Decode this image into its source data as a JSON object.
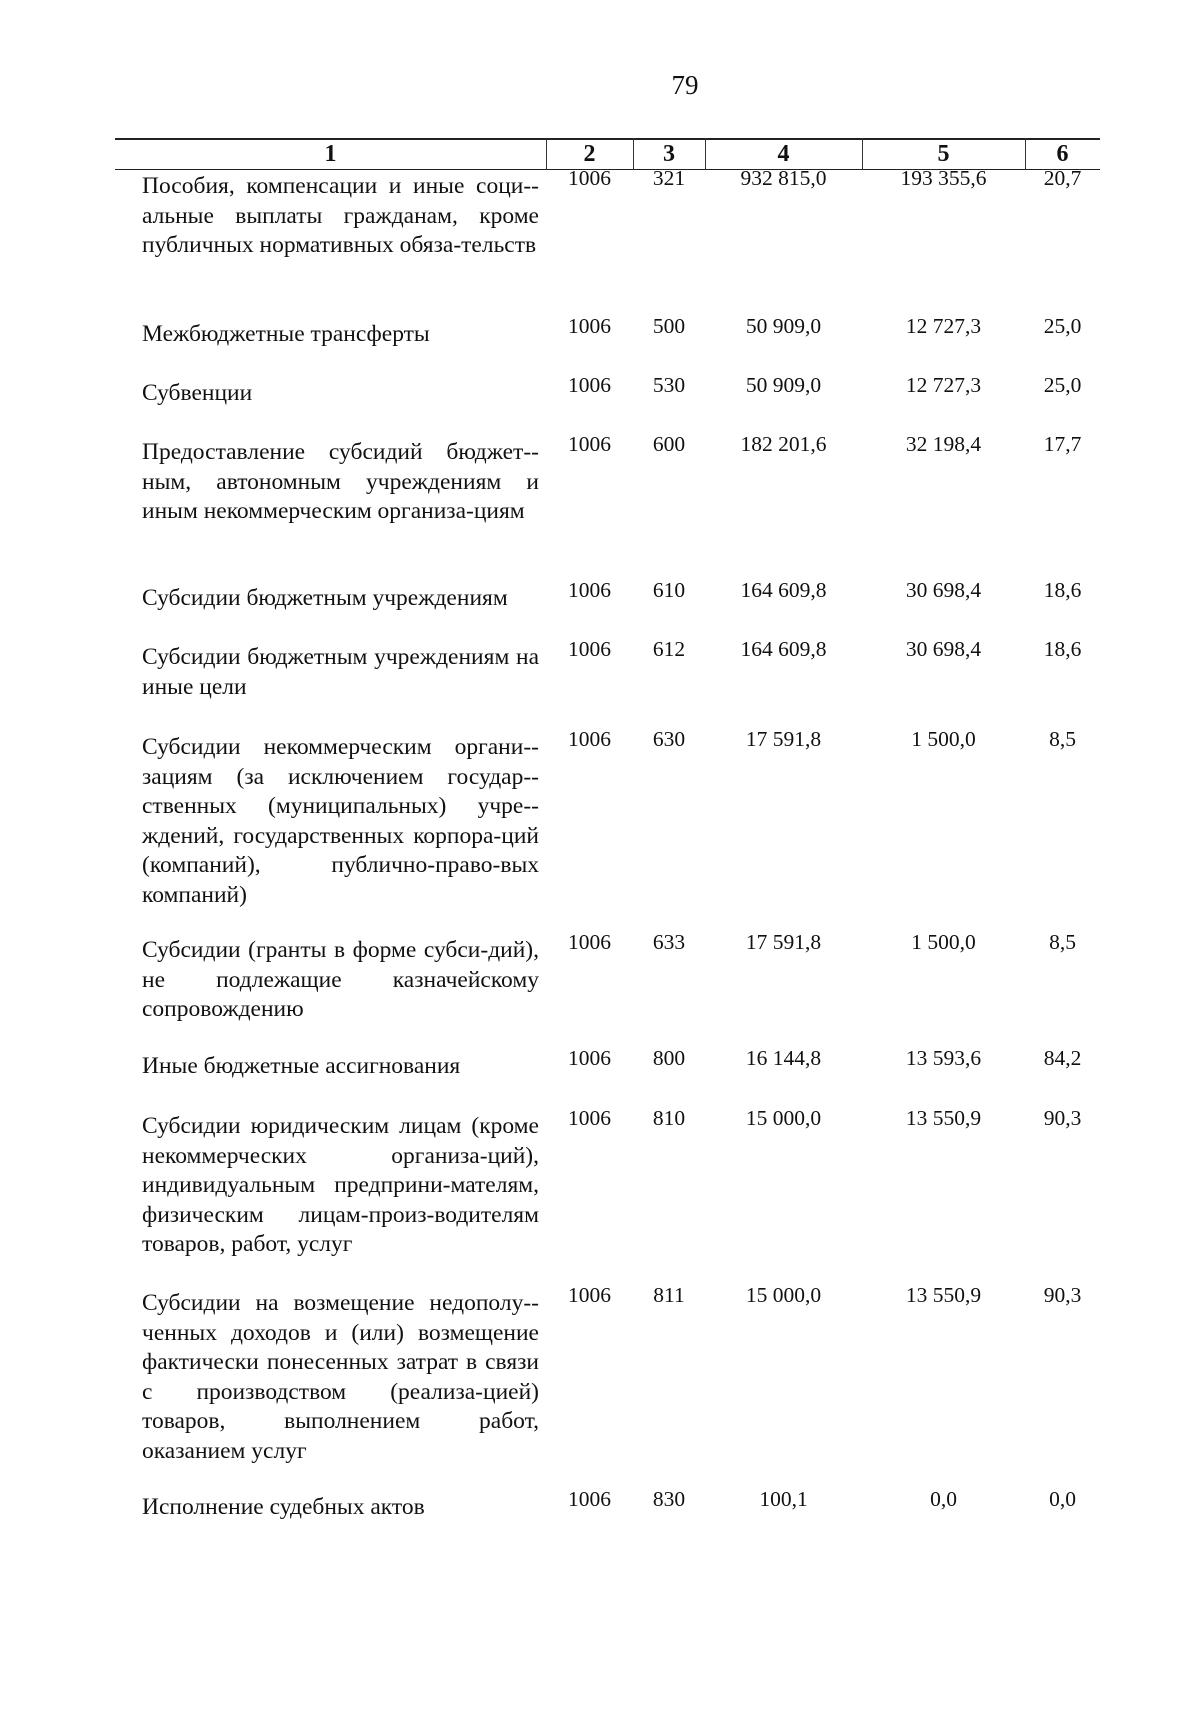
{
  "page_number": "79",
  "table": {
    "headers": [
      "1",
      "2",
      "3",
      "4",
      "5",
      "6"
    ],
    "rows": [
      {
        "name": "Пособия, компенсации и иные соци-альные выплаты гражданам, кроме публичных нормативных обяза-тельств",
        "c2": "1006",
        "c3": "321",
        "c4": "932 815,0",
        "c5": "193 355,6",
        "c6": "20,7"
      },
      {
        "name": "Межбюджетные трансферты",
        "c2": "1006",
        "c3": "500",
        "c4": "50 909,0",
        "c5": "12 727,3",
        "c6": "25,0"
      },
      {
        "name": "Субвенции",
        "c2": "1006",
        "c3": "530",
        "c4": "50 909,0",
        "c5": "12 727,3",
        "c6": "25,0"
      },
      {
        "name": "Предоставление субсидий бюджет-ным, автономным учреждениям и иным некоммерческим организа-циям",
        "c2": "1006",
        "c3": "600",
        "c4": "182 201,6",
        "c5": "32 198,4",
        "c6": "17,7"
      },
      {
        "name": "Субсидии бюджетным учреждениям",
        "c2": "1006",
        "c3": "610",
        "c4": "164 609,8",
        "c5": "30 698,4",
        "c6": "18,6"
      },
      {
        "name": "Субсидии бюджетным учреждениям на иные цели",
        "c2": "1006",
        "c3": "612",
        "c4": "164 609,8",
        "c5": "30 698,4",
        "c6": "18,6"
      },
      {
        "name": "Субсидии некоммерческим органи-зациям (за исключением государ-ственных (муниципальных) учре-ждений, государственных корпора-ций (компаний), публично-право-вых компаний)",
        "c2": "1006",
        "c3": "630",
        "c4": "17 591,8",
        "c5": "1 500,0",
        "c6": "8,5"
      },
      {
        "name": "Субсидии (гранты в форме субси-дий), не подлежащие казначейскому сопровождению",
        "c2": "1006",
        "c3": "633",
        "c4": "17 591,8",
        "c5": "1 500,0",
        "c6": "8,5"
      },
      {
        "name": "Иные бюджетные ассигнования",
        "c2": "1006",
        "c3": "800",
        "c4": "16 144,8",
        "c5": "13 593,6",
        "c6": "84,2"
      },
      {
        "name": "Субсидии юридическим лицам (кроме некоммерческих организа-ций), индивидуальным предприни-мателям, физическим лицам-произ-водителям товаров, работ, услуг",
        "c2": "1006",
        "c3": "810",
        "c4": "15 000,0",
        "c5": "13 550,9",
        "c6": "90,3"
      },
      {
        "name": "Субсидии на возмещение недополу-ченных доходов и (или) возмещение фактически понесенных затрат в связи с производством (реализа-цией) товаров, выполнением работ, оказанием услуг",
        "c2": "1006",
        "c3": "811",
        "c4": "15 000,0",
        "c5": "13 550,9",
        "c6": "90,3"
      },
      {
        "name": "Исполнение судебных актов",
        "c2": "1006",
        "c3": "830",
        "c4": "100,1",
        "c5": "0,0",
        "c6": "0,0"
      }
    ]
  }
}
